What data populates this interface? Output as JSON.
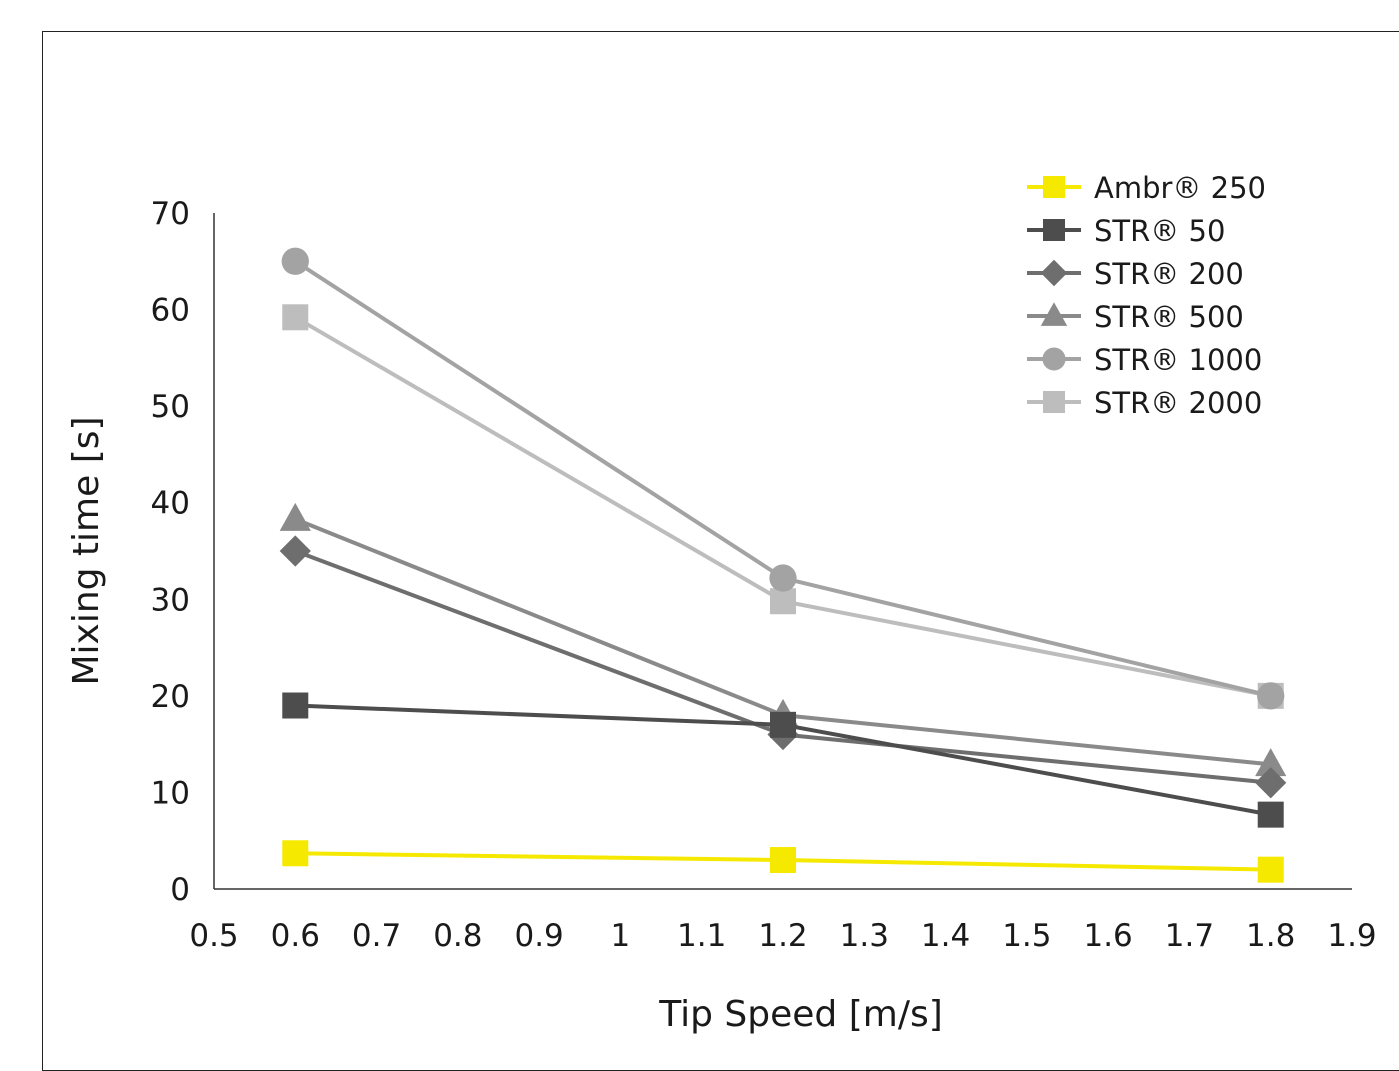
{
  "chart_data": {
    "type": "line",
    "title": "",
    "xlabel": "Tip Speed [m/s]",
    "ylabel": "Mixing time [s]",
    "xlim": [
      0.5,
      1.9
    ],
    "ylim": [
      0,
      70
    ],
    "x_ticks": [
      "0.5",
      "0.6",
      "0.7",
      "0.8",
      "0.9",
      "1",
      "1.1",
      "1.2",
      "1.3",
      "1.4",
      "1.5",
      "1.6",
      "1.7",
      "1.8",
      "1.9"
    ],
    "y_ticks": [
      "0",
      "10",
      "20",
      "30",
      "40",
      "50",
      "60",
      "70"
    ],
    "grid": false,
    "legend_position": "top-right",
    "series": [
      {
        "name": "Ambr® 250",
        "marker": "square",
        "color": "#f5e900",
        "x": [
          0.6,
          1.2,
          1.8
        ],
        "y": [
          3.7,
          3.0,
          2.0
        ]
      },
      {
        "name": "STR® 50",
        "marker": "square",
        "color": "#4d4d4d",
        "x": [
          0.6,
          1.2,
          1.8
        ],
        "y": [
          19.0,
          17.0,
          7.7
        ]
      },
      {
        "name": "STR® 200",
        "marker": "diamond",
        "color": "#6e6e6e",
        "x": [
          0.6,
          1.2,
          1.8
        ],
        "y": [
          35.0,
          16.0,
          11.0
        ]
      },
      {
        "name": "STR® 500",
        "marker": "triangle",
        "color": "#8a8a8a",
        "x": [
          0.6,
          1.2,
          1.8
        ],
        "y": [
          38.3,
          18.0,
          12.9
        ]
      },
      {
        "name": "STR® 1000",
        "marker": "circle",
        "color": "#a3a3a3",
        "x": [
          0.6,
          1.2,
          1.8
        ],
        "y": [
          65.0,
          32.2,
          20.0
        ]
      },
      {
        "name": "STR® 2000",
        "marker": "square",
        "color": "#bdbdbd",
        "x": [
          0.6,
          1.2,
          1.8
        ],
        "y": [
          59.2,
          29.8,
          20.0
        ]
      }
    ]
  }
}
